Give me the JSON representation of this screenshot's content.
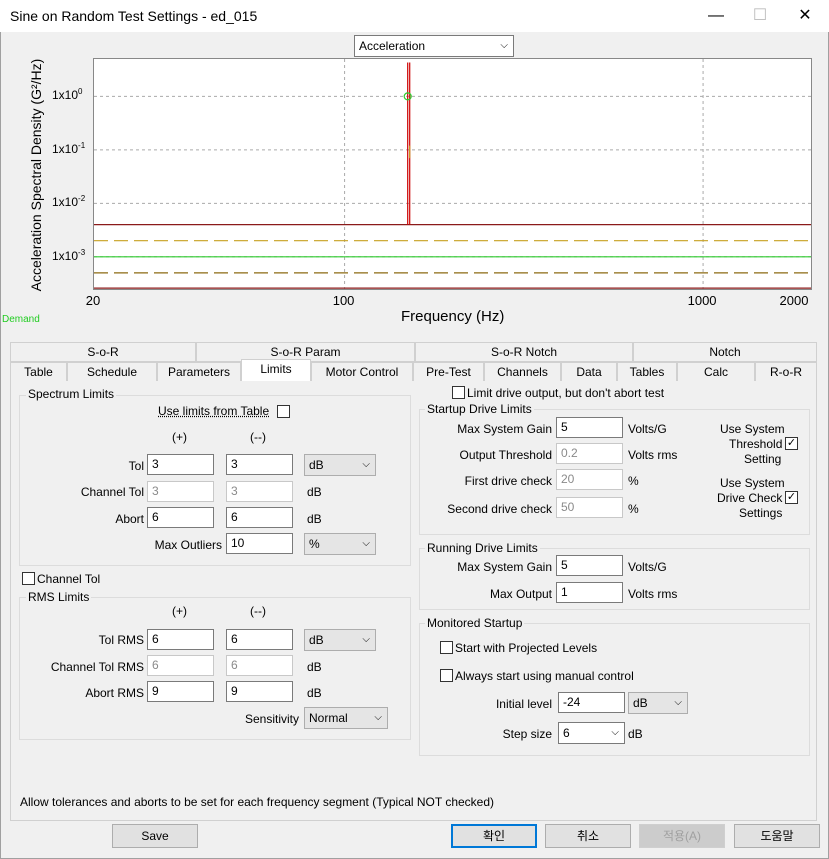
{
  "window": {
    "title": "Sine on Random Test Settings - ed_015"
  },
  "chart_selector": {
    "value": "Acceleration"
  },
  "chart_data": {
    "type": "line",
    "ylabel": "Acceleration Spectral Density (G²/Hz)",
    "xlabel": "Frequency (Hz)",
    "x_scale": "log",
    "y_scale": "log",
    "xlim": [
      20,
      2000
    ],
    "ylim": [
      0.00025,
      5
    ],
    "x_ticks": [
      "20",
      "100",
      "1000",
      "2000"
    ],
    "y_ticks": [
      {
        "base": "1x10",
        "exp": "0",
        "value": 1
      },
      {
        "base": "1x10",
        "exp": "-1",
        "value": 0.1
      },
      {
        "base": "1x10",
        "exp": "-2",
        "value": 0.01
      },
      {
        "base": "1x10",
        "exp": "-3",
        "value": 0.001
      }
    ],
    "legend_label": "Demand",
    "series": [
      {
        "color": "#8b1a1a",
        "style": "solid",
        "y": 0.004
      },
      {
        "color": "#c8a020",
        "style": "dash",
        "y": 0.002
      },
      {
        "color": "#2ecc2e",
        "style": "solid",
        "y": 0.001
      },
      {
        "color": "#8b6a10",
        "style": "dash",
        "y": 0.0005
      },
      {
        "color": "#8b1a1a",
        "style": "solid",
        "y": 0.00026
      }
    ],
    "sine_tone": {
      "frequency": 150,
      "peak": 4.3,
      "demand": 1.0
    }
  },
  "tabs_row1": [
    "S-o-R",
    "S-o-R Param",
    "S-o-R Notch",
    "Notch"
  ],
  "tabs_row2": [
    "Table",
    "Schedule",
    "Parameters",
    "Limits",
    "Motor Control",
    "Pre-Test",
    "Channels",
    "Data",
    "Tables",
    "Calc",
    "R-o-R"
  ],
  "spectrum": {
    "title": "Spectrum Limits",
    "use_table_label": "Use limits from Table",
    "plus": "(+)",
    "minus": "(--)",
    "tol_label": "Tol",
    "tol_plus": "3",
    "tol_minus": "3",
    "tol_unit": "dB",
    "chtol_label": "Channel Tol",
    "chtol_plus": "3",
    "chtol_minus": "3",
    "chtol_unit": "dB",
    "abort_label": "Abort",
    "abort_plus": "6",
    "abort_minus": "6",
    "abort_unit": "dB",
    "outliers_label": "Max Outliers",
    "outliers_value": "10",
    "outliers_unit": "%"
  },
  "channel_tol_check": "Channel Tol",
  "rms": {
    "title": "RMS Limits",
    "plus": "(+)",
    "minus": "(--)",
    "tol_label": "Tol RMS",
    "tol_plus": "6",
    "tol_minus": "6",
    "tol_unit": "dB",
    "chtol_label": "Channel Tol RMS",
    "chtol_plus": "6",
    "chtol_minus": "6",
    "chtol_unit": "dB",
    "abort_label": "Abort RMS",
    "abort_plus": "9",
    "abort_minus": "9",
    "abort_unit": "dB",
    "sens_label": "Sensitivity",
    "sens_value": "Normal"
  },
  "limit_drive_label": "Limit drive output, but don't abort test",
  "startup": {
    "title": "Startup Drive Limits",
    "gain_label": "Max System Gain",
    "gain_value": "5",
    "gain_unit": "Volts/G",
    "thr_label": "Output Threshold",
    "thr_value": "0.2",
    "thr_unit": "Volts rms",
    "first_label": "First drive check",
    "first_value": "20",
    "first_unit": "%",
    "second_label": "Second drive check",
    "second_value": "50",
    "second_unit": "%",
    "sys_thr_l1": "Use System",
    "sys_thr_l2": "Threshold",
    "sys_thr_l3": "Setting",
    "sys_dc_l1": "Use System",
    "sys_dc_l2": "Drive Check",
    "sys_dc_l3": "Settings"
  },
  "running": {
    "title": "Running Drive Limits",
    "gain_label": "Max System Gain",
    "gain_value": "5",
    "gain_unit": "Volts/G",
    "out_label": "Max Output",
    "out_value": "1",
    "out_unit": "Volts rms"
  },
  "monitored": {
    "title": "Monitored Startup",
    "projected_label": "Start with Projected Levels",
    "manual_label": "Always start using manual control",
    "init_label": "Initial level",
    "init_value": "-24",
    "init_unit": "dB",
    "step_label": "Step size",
    "step_value": "6",
    "step_unit": "dB"
  },
  "status_text": "Allow tolerances and aborts to be set for each frequency segment (Typical NOT checked)",
  "buttons": {
    "save": "Save",
    "ok": "확인",
    "cancel": "취소",
    "apply": "적용(A)",
    "help": "도움말"
  }
}
